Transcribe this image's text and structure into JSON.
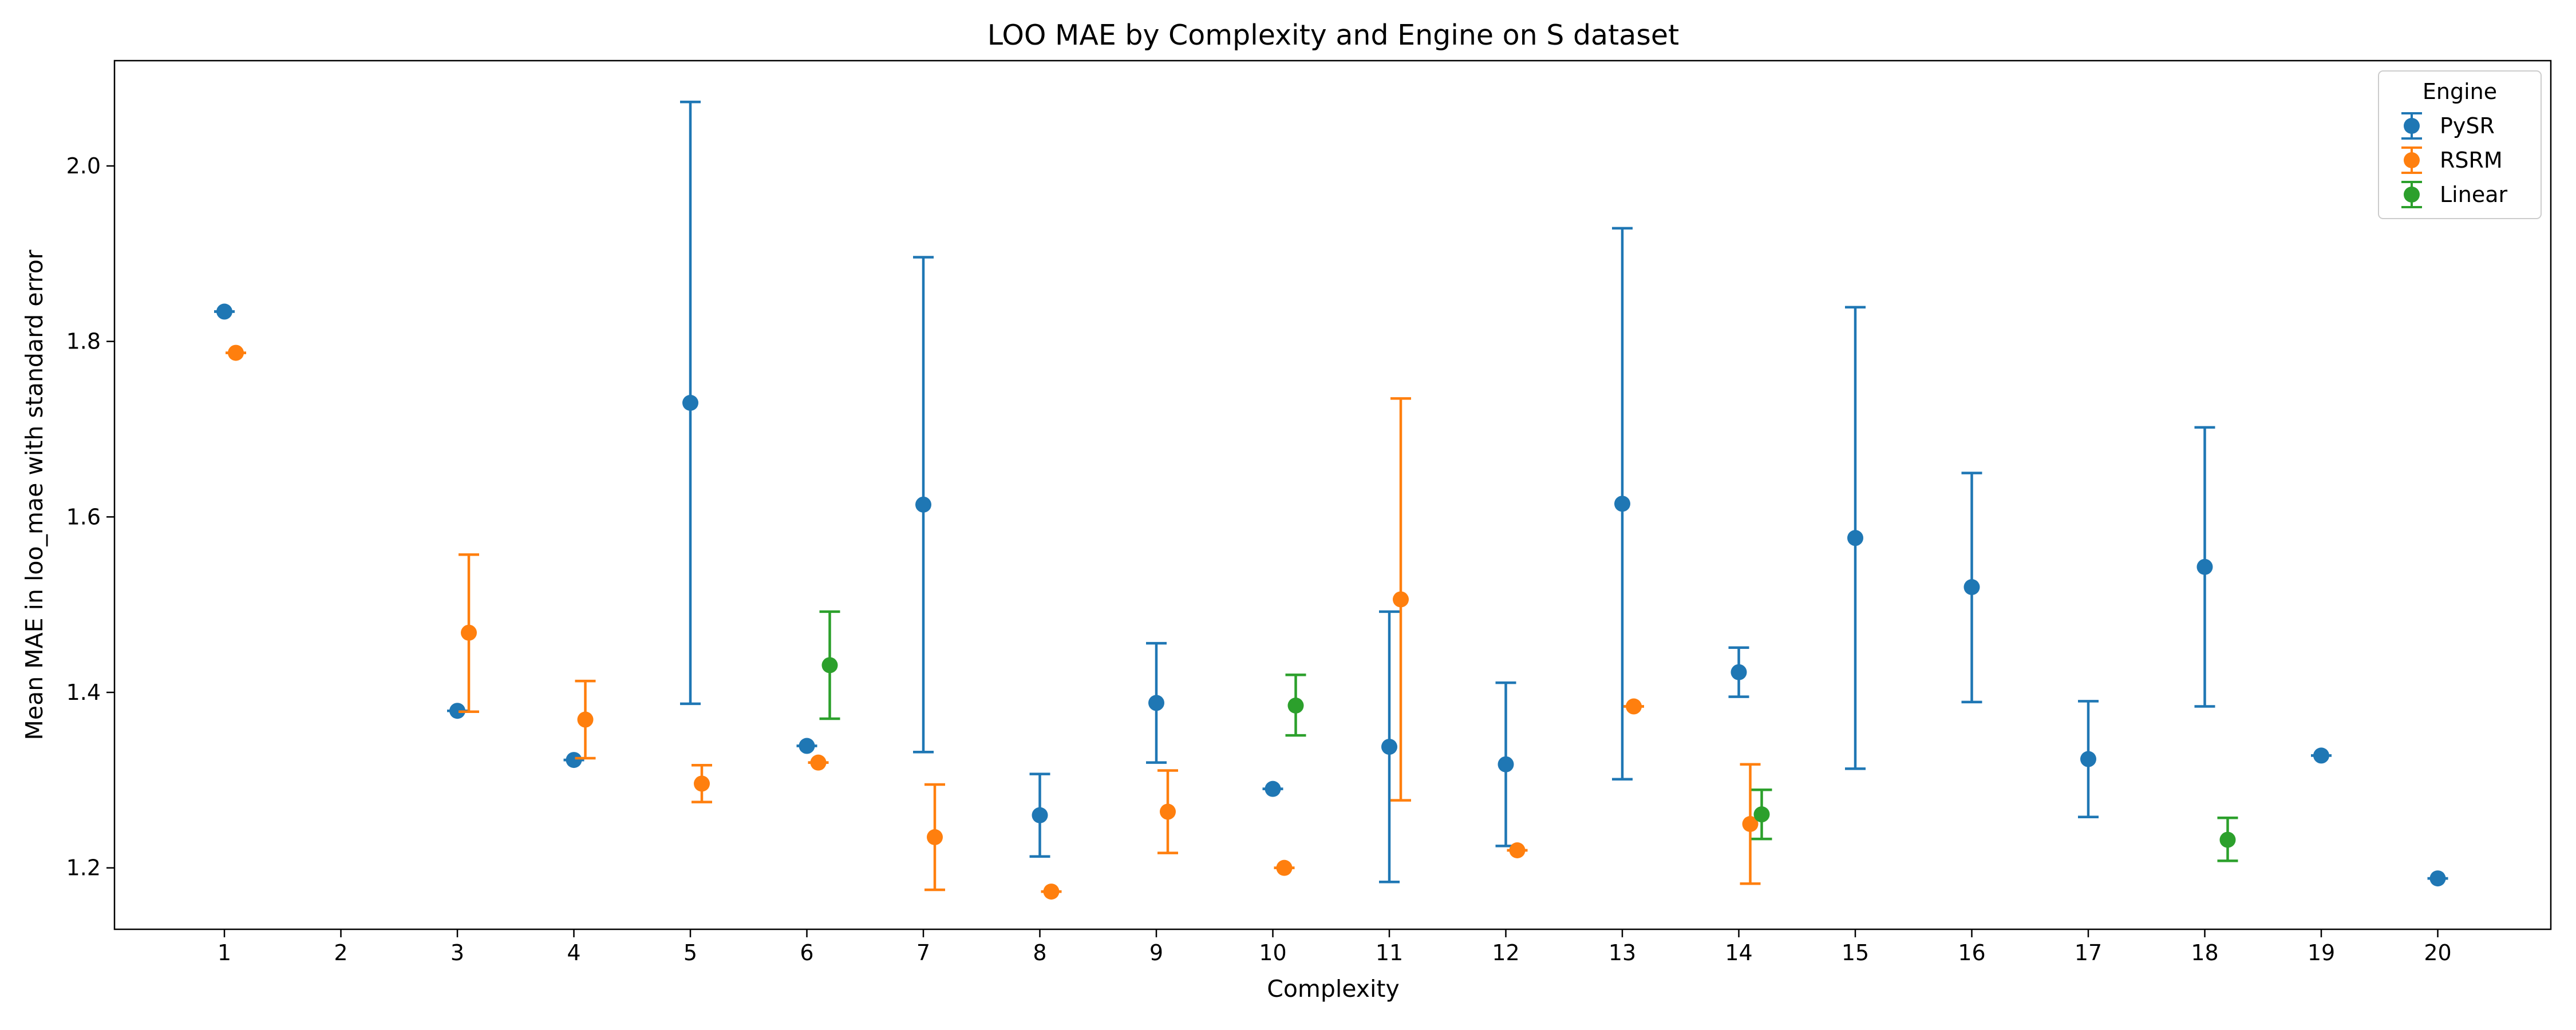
{
  "chart_data": {
    "type": "scatter",
    "title": "LOO MAE by Complexity and Engine on S dataset",
    "xlabel": "Complexity",
    "ylabel": "Mean MAE in loo_mae with standard error",
    "categories": [
      1,
      2,
      3,
      4,
      5,
      6,
      7,
      8,
      9,
      10,
      11,
      12,
      13,
      14,
      15,
      16,
      17,
      18,
      19,
      20
    ],
    "ylim": [
      1.13,
      2.12
    ],
    "yticks": [
      1.2,
      1.4,
      1.6,
      1.8,
      2.0
    ],
    "ytick_labels": [
      "1.2",
      "1.4",
      "1.6",
      "1.8",
      "2.0"
    ],
    "grid": false,
    "legend": {
      "title": "Engine",
      "placement": "top-right"
    },
    "series": [
      {
        "name": "PySR",
        "color": "#1f77b4",
        "points": [
          {
            "x": 1,
            "y": 1.834,
            "lo": 1.834,
            "hi": 1.834
          },
          {
            "x": 3,
            "y": 1.379,
            "lo": 1.379,
            "hi": 1.379
          },
          {
            "x": 4,
            "y": 1.323,
            "lo": 1.323,
            "hi": 1.323
          },
          {
            "x": 5,
            "y": 1.73,
            "lo": 1.387,
            "hi": 2.073
          },
          {
            "x": 6,
            "y": 1.339,
            "lo": 1.339,
            "hi": 1.339
          },
          {
            "x": 7,
            "y": 1.614,
            "lo": 1.332,
            "hi": 1.896
          },
          {
            "x": 8,
            "y": 1.26,
            "lo": 1.213,
            "hi": 1.307
          },
          {
            "x": 9,
            "y": 1.388,
            "lo": 1.32,
            "hi": 1.456
          },
          {
            "x": 10,
            "y": 1.29,
            "lo": 1.29,
            "hi": 1.29
          },
          {
            "x": 11,
            "y": 1.338,
            "lo": 1.184,
            "hi": 1.492
          },
          {
            "x": 12,
            "y": 1.318,
            "lo": 1.225,
            "hi": 1.411
          },
          {
            "x": 13,
            "y": 1.615,
            "lo": 1.301,
            "hi": 1.929
          },
          {
            "x": 14,
            "y": 1.423,
            "lo": 1.395,
            "hi": 1.451
          },
          {
            "x": 15,
            "y": 1.576,
            "lo": 1.313,
            "hi": 1.839
          },
          {
            "x": 16,
            "y": 1.52,
            "lo": 1.389,
            "hi": 1.65
          },
          {
            "x": 17,
            "y": 1.324,
            "lo": 1.258,
            "hi": 1.39
          },
          {
            "x": 18,
            "y": 1.543,
            "lo": 1.384,
            "hi": 1.702
          },
          {
            "x": 19,
            "y": 1.328,
            "lo": 1.328,
            "hi": 1.328
          },
          {
            "x": 20,
            "y": 1.188,
            "lo": 1.188,
            "hi": 1.188
          }
        ]
      },
      {
        "name": "RSRM",
        "color": "#ff7f0e",
        "points": [
          {
            "x": 1,
            "y": 1.787,
            "lo": 1.787,
            "hi": 1.787
          },
          {
            "x": 3,
            "y": 1.468,
            "lo": 1.378,
            "hi": 1.557
          },
          {
            "x": 4,
            "y": 1.369,
            "lo": 1.325,
            "hi": 1.413
          },
          {
            "x": 5,
            "y": 1.296,
            "lo": 1.275,
            "hi": 1.317
          },
          {
            "x": 6,
            "y": 1.32,
            "lo": 1.32,
            "hi": 1.32
          },
          {
            "x": 7,
            "y": 1.235,
            "lo": 1.175,
            "hi": 1.295
          },
          {
            "x": 8,
            "y": 1.173,
            "lo": 1.173,
            "hi": 1.173
          },
          {
            "x": 9,
            "y": 1.264,
            "lo": 1.217,
            "hi": 1.311
          },
          {
            "x": 10,
            "y": 1.2,
            "lo": 1.2,
            "hi": 1.2
          },
          {
            "x": 11,
            "y": 1.506,
            "lo": 1.277,
            "hi": 1.735
          },
          {
            "x": 12,
            "y": 1.22,
            "lo": 1.22,
            "hi": 1.22
          },
          {
            "x": 13,
            "y": 1.384,
            "lo": 1.384,
            "hi": 1.384
          },
          {
            "x": 14,
            "y": 1.25,
            "lo": 1.182,
            "hi": 1.318
          }
        ]
      },
      {
        "name": "Linear",
        "color": "#2ca02c",
        "points": [
          {
            "x": 6,
            "y": 1.431,
            "lo": 1.37,
            "hi": 1.492
          },
          {
            "x": 10,
            "y": 1.385,
            "lo": 1.351,
            "hi": 1.42
          },
          {
            "x": 14,
            "y": 1.261,
            "lo": 1.233,
            "hi": 1.289
          },
          {
            "x": 18,
            "y": 1.232,
            "lo": 1.208,
            "hi": 1.257
          }
        ]
      }
    ]
  }
}
